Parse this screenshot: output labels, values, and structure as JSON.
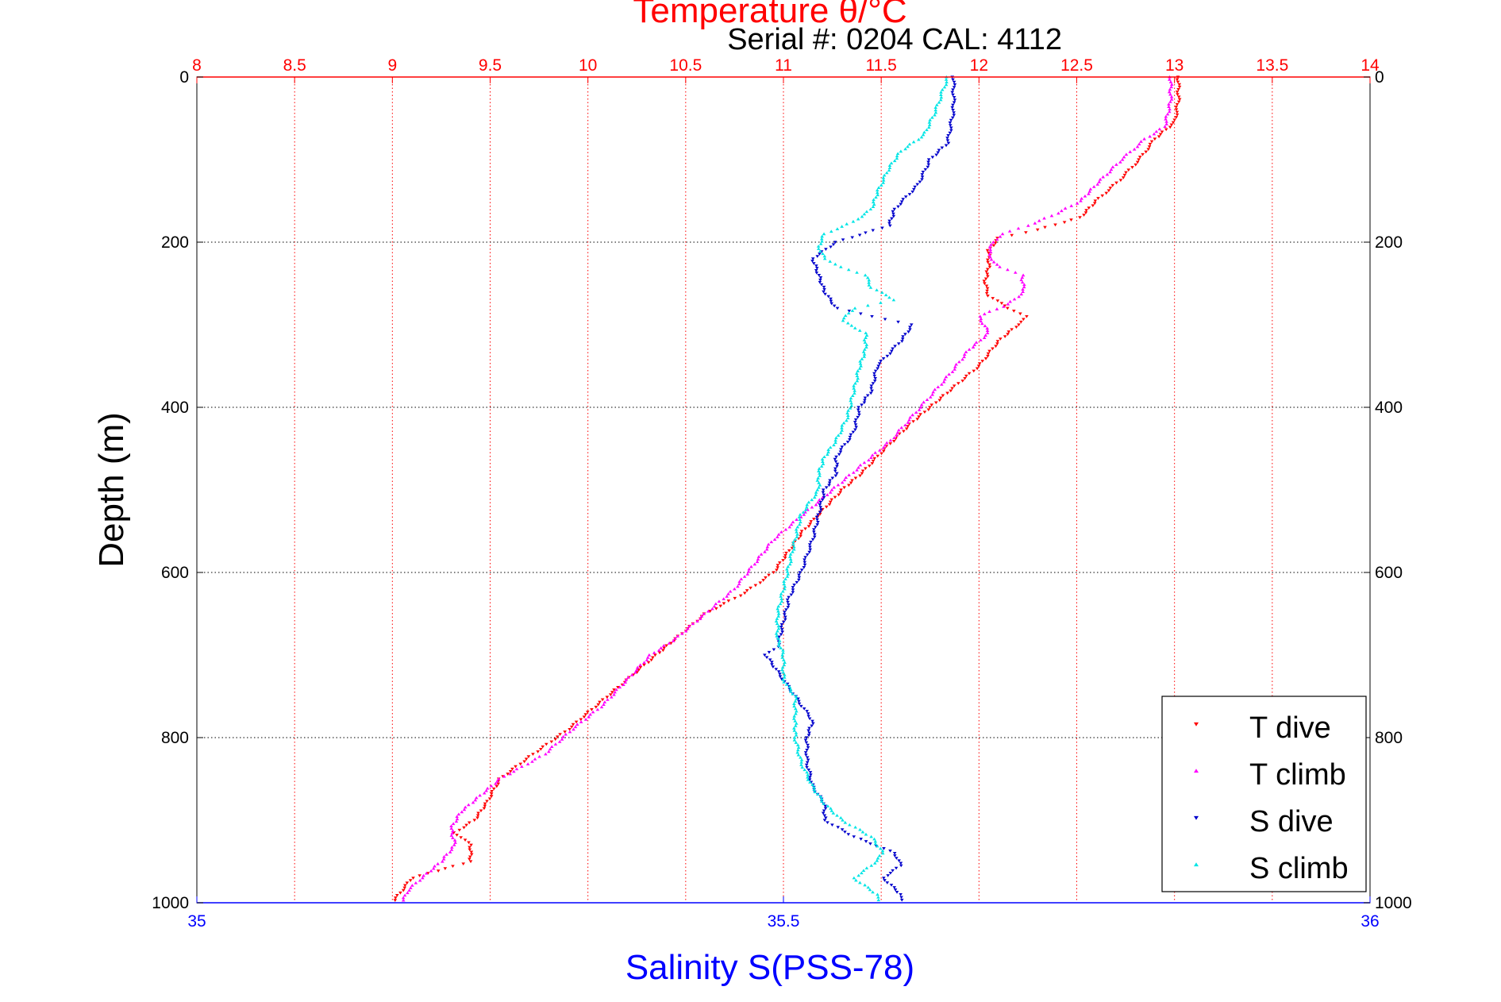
{
  "chart_data": {
    "type": "scatter",
    "title": "Temperature θ/°C",
    "subtitle": "Serial #: 0204  CAL: 4112",
    "ylabel": "Depth (m)",
    "xlabel_bottom": "Salinity S(PSS-78)",
    "xlabel_top": "Temperature θ/°C",
    "y_reversed": true,
    "ylim": [
      0,
      1000
    ],
    "y_ticks": [
      0,
      200,
      400,
      600,
      800,
      1000
    ],
    "y_tick_labels": [
      "0",
      "200",
      "400",
      "600",
      "800",
      "1000"
    ],
    "temperature_axis": {
      "range": [
        8,
        14
      ],
      "ticks": [
        8,
        8.5,
        9,
        9.5,
        10,
        10.5,
        11,
        11.5,
        12,
        12.5,
        13,
        13.5,
        14
      ],
      "tick_labels": [
        "8",
        "8.5",
        "9",
        "9.5",
        "10",
        "10.5",
        "11",
        "11.5",
        "12",
        "12.5",
        "13",
        "13.5",
        "14"
      ],
      "color": "#ff0000"
    },
    "salinity_axis": {
      "range": [
        35,
        36
      ],
      "ticks": [
        35,
        35.5,
        36
      ],
      "tick_labels": [
        "35",
        "35.5",
        "36"
      ],
      "color": "#0000ff"
    },
    "grid": true,
    "legend_position": "bottom-right",
    "series": [
      {
        "name": "T dive",
        "axis": "temperature",
        "color": "#ff0000",
        "marker": "triangle-down",
        "points": [
          [
            0,
            13.02
          ],
          [
            30,
            13.02
          ],
          [
            55,
            13.0
          ],
          [
            75,
            12.9
          ],
          [
            100,
            12.82
          ],
          [
            125,
            12.72
          ],
          [
            150,
            12.6
          ],
          [
            170,
            12.52
          ],
          [
            185,
            12.3
          ],
          [
            195,
            12.1
          ],
          [
            210,
            12.05
          ],
          [
            230,
            12.05
          ],
          [
            250,
            12.03
          ],
          [
            265,
            12.05
          ],
          [
            280,
            12.15
          ],
          [
            290,
            12.25
          ],
          [
            300,
            12.2
          ],
          [
            320,
            12.1
          ],
          [
            350,
            12.0
          ],
          [
            380,
            11.85
          ],
          [
            400,
            11.75
          ],
          [
            420,
            11.65
          ],
          [
            450,
            11.52
          ],
          [
            480,
            11.4
          ],
          [
            500,
            11.3
          ],
          [
            550,
            11.1
          ],
          [
            600,
            10.95
          ],
          [
            625,
            10.8
          ],
          [
            650,
            10.6
          ],
          [
            680,
            10.45
          ],
          [
            700,
            10.35
          ],
          [
            730,
            10.2
          ],
          [
            760,
            10.05
          ],
          [
            790,
            9.9
          ],
          [
            820,
            9.72
          ],
          [
            850,
            9.55
          ],
          [
            880,
            9.48
          ],
          [
            900,
            9.42
          ],
          [
            915,
            9.32
          ],
          [
            930,
            9.4
          ],
          [
            950,
            9.4
          ],
          [
            970,
            9.1
          ],
          [
            985,
            9.05
          ],
          [
            1000,
            9.0
          ]
        ]
      },
      {
        "name": "T climb",
        "axis": "temperature",
        "color": "#ff00ff",
        "marker": "triangle-up",
        "points": [
          [
            0,
            12.98
          ],
          [
            30,
            12.98
          ],
          [
            60,
            12.95
          ],
          [
            75,
            12.85
          ],
          [
            100,
            12.73
          ],
          [
            130,
            12.6
          ],
          [
            150,
            12.52
          ],
          [
            165,
            12.4
          ],
          [
            180,
            12.25
          ],
          [
            190,
            12.12
          ],
          [
            200,
            12.07
          ],
          [
            215,
            12.05
          ],
          [
            230,
            12.1
          ],
          [
            240,
            12.22
          ],
          [
            260,
            12.23
          ],
          [
            275,
            12.15
          ],
          [
            290,
            12.0
          ],
          [
            310,
            12.05
          ],
          [
            330,
            11.95
          ],
          [
            360,
            11.85
          ],
          [
            400,
            11.7
          ],
          [
            440,
            11.55
          ],
          [
            470,
            11.4
          ],
          [
            500,
            11.25
          ],
          [
            530,
            11.1
          ],
          [
            560,
            10.95
          ],
          [
            590,
            10.85
          ],
          [
            620,
            10.75
          ],
          [
            650,
            10.6
          ],
          [
            680,
            10.45
          ],
          [
            700,
            10.32
          ],
          [
            730,
            10.2
          ],
          [
            760,
            10.08
          ],
          [
            790,
            9.92
          ],
          [
            820,
            9.78
          ],
          [
            850,
            9.55
          ],
          [
            870,
            9.45
          ],
          [
            890,
            9.35
          ],
          [
            910,
            9.3
          ],
          [
            930,
            9.32
          ],
          [
            950,
            9.25
          ],
          [
            970,
            9.15
          ],
          [
            985,
            9.08
          ],
          [
            1000,
            9.05
          ]
        ]
      },
      {
        "name": "S dive",
        "axis": "salinity",
        "color": "#0000cc",
        "marker": "triangle-down",
        "points": [
          [
            0,
            35.645
          ],
          [
            40,
            35.645
          ],
          [
            80,
            35.64
          ],
          [
            100,
            35.625
          ],
          [
            130,
            35.615
          ],
          [
            160,
            35.595
          ],
          [
            180,
            35.59
          ],
          [
            200,
            35.545
          ],
          [
            220,
            35.525
          ],
          [
            240,
            35.53
          ],
          [
            260,
            35.535
          ],
          [
            280,
            35.545
          ],
          [
            290,
            35.575
          ],
          [
            300,
            35.61
          ],
          [
            320,
            35.6
          ],
          [
            350,
            35.58
          ],
          [
            380,
            35.575
          ],
          [
            400,
            35.565
          ],
          [
            430,
            35.56
          ],
          [
            460,
            35.545
          ],
          [
            480,
            35.545
          ],
          [
            500,
            35.535
          ],
          [
            530,
            35.53
          ],
          [
            560,
            35.525
          ],
          [
            600,
            35.515
          ],
          [
            630,
            35.505
          ],
          [
            660,
            35.5
          ],
          [
            690,
            35.495
          ],
          [
            700,
            35.485
          ],
          [
            720,
            35.495
          ],
          [
            750,
            35.51
          ],
          [
            780,
            35.525
          ],
          [
            800,
            35.52
          ],
          [
            830,
            35.52
          ],
          [
            860,
            35.525
          ],
          [
            880,
            35.535
          ],
          [
            900,
            35.535
          ],
          [
            920,
            35.56
          ],
          [
            940,
            35.595
          ],
          [
            955,
            35.6
          ],
          [
            970,
            35.585
          ],
          [
            990,
            35.6
          ],
          [
            1000,
            35.6
          ]
        ]
      },
      {
        "name": "S climb",
        "axis": "salinity",
        "color": "#00e5e5",
        "marker": "triangle-up",
        "points": [
          [
            0,
            35.64
          ],
          [
            40,
            35.63
          ],
          [
            70,
            35.62
          ],
          [
            90,
            35.6
          ],
          [
            110,
            35.59
          ],
          [
            140,
            35.58
          ],
          [
            160,
            35.575
          ],
          [
            175,
            35.56
          ],
          [
            190,
            35.535
          ],
          [
            205,
            35.53
          ],
          [
            220,
            35.535
          ],
          [
            230,
            35.55
          ],
          [
            240,
            35.57
          ],
          [
            255,
            35.575
          ],
          [
            270,
            35.595
          ],
          [
            280,
            35.56
          ],
          [
            295,
            35.55
          ],
          [
            310,
            35.57
          ],
          [
            330,
            35.57
          ],
          [
            350,
            35.565
          ],
          [
            380,
            35.56
          ],
          [
            410,
            35.555
          ],
          [
            440,
            35.545
          ],
          [
            460,
            35.535
          ],
          [
            480,
            35.53
          ],
          [
            500,
            35.53
          ],
          [
            530,
            35.515
          ],
          [
            560,
            35.51
          ],
          [
            590,
            35.505
          ],
          [
            620,
            35.5
          ],
          [
            650,
            35.495
          ],
          [
            680,
            35.495
          ],
          [
            700,
            35.5
          ],
          [
            730,
            35.5
          ],
          [
            750,
            35.51
          ],
          [
            780,
            35.51
          ],
          [
            800,
            35.51
          ],
          [
            830,
            35.515
          ],
          [
            860,
            35.525
          ],
          [
            880,
            35.535
          ],
          [
            900,
            35.55
          ],
          [
            920,
            35.575
          ],
          [
            940,
            35.585
          ],
          [
            955,
            35.575
          ],
          [
            970,
            35.56
          ],
          [
            990,
            35.58
          ],
          [
            1000,
            35.58
          ]
        ]
      }
    ]
  },
  "legend": {
    "items": [
      {
        "label": "T dive",
        "color": "#ff0000",
        "marker": "triangle-down"
      },
      {
        "label": "T climb",
        "color": "#ff00ff",
        "marker": "triangle-up"
      },
      {
        "label": "S dive",
        "color": "#0000cc",
        "marker": "triangle-down"
      },
      {
        "label": "S climb",
        "color": "#00e5e5",
        "marker": "triangle-up"
      }
    ]
  }
}
